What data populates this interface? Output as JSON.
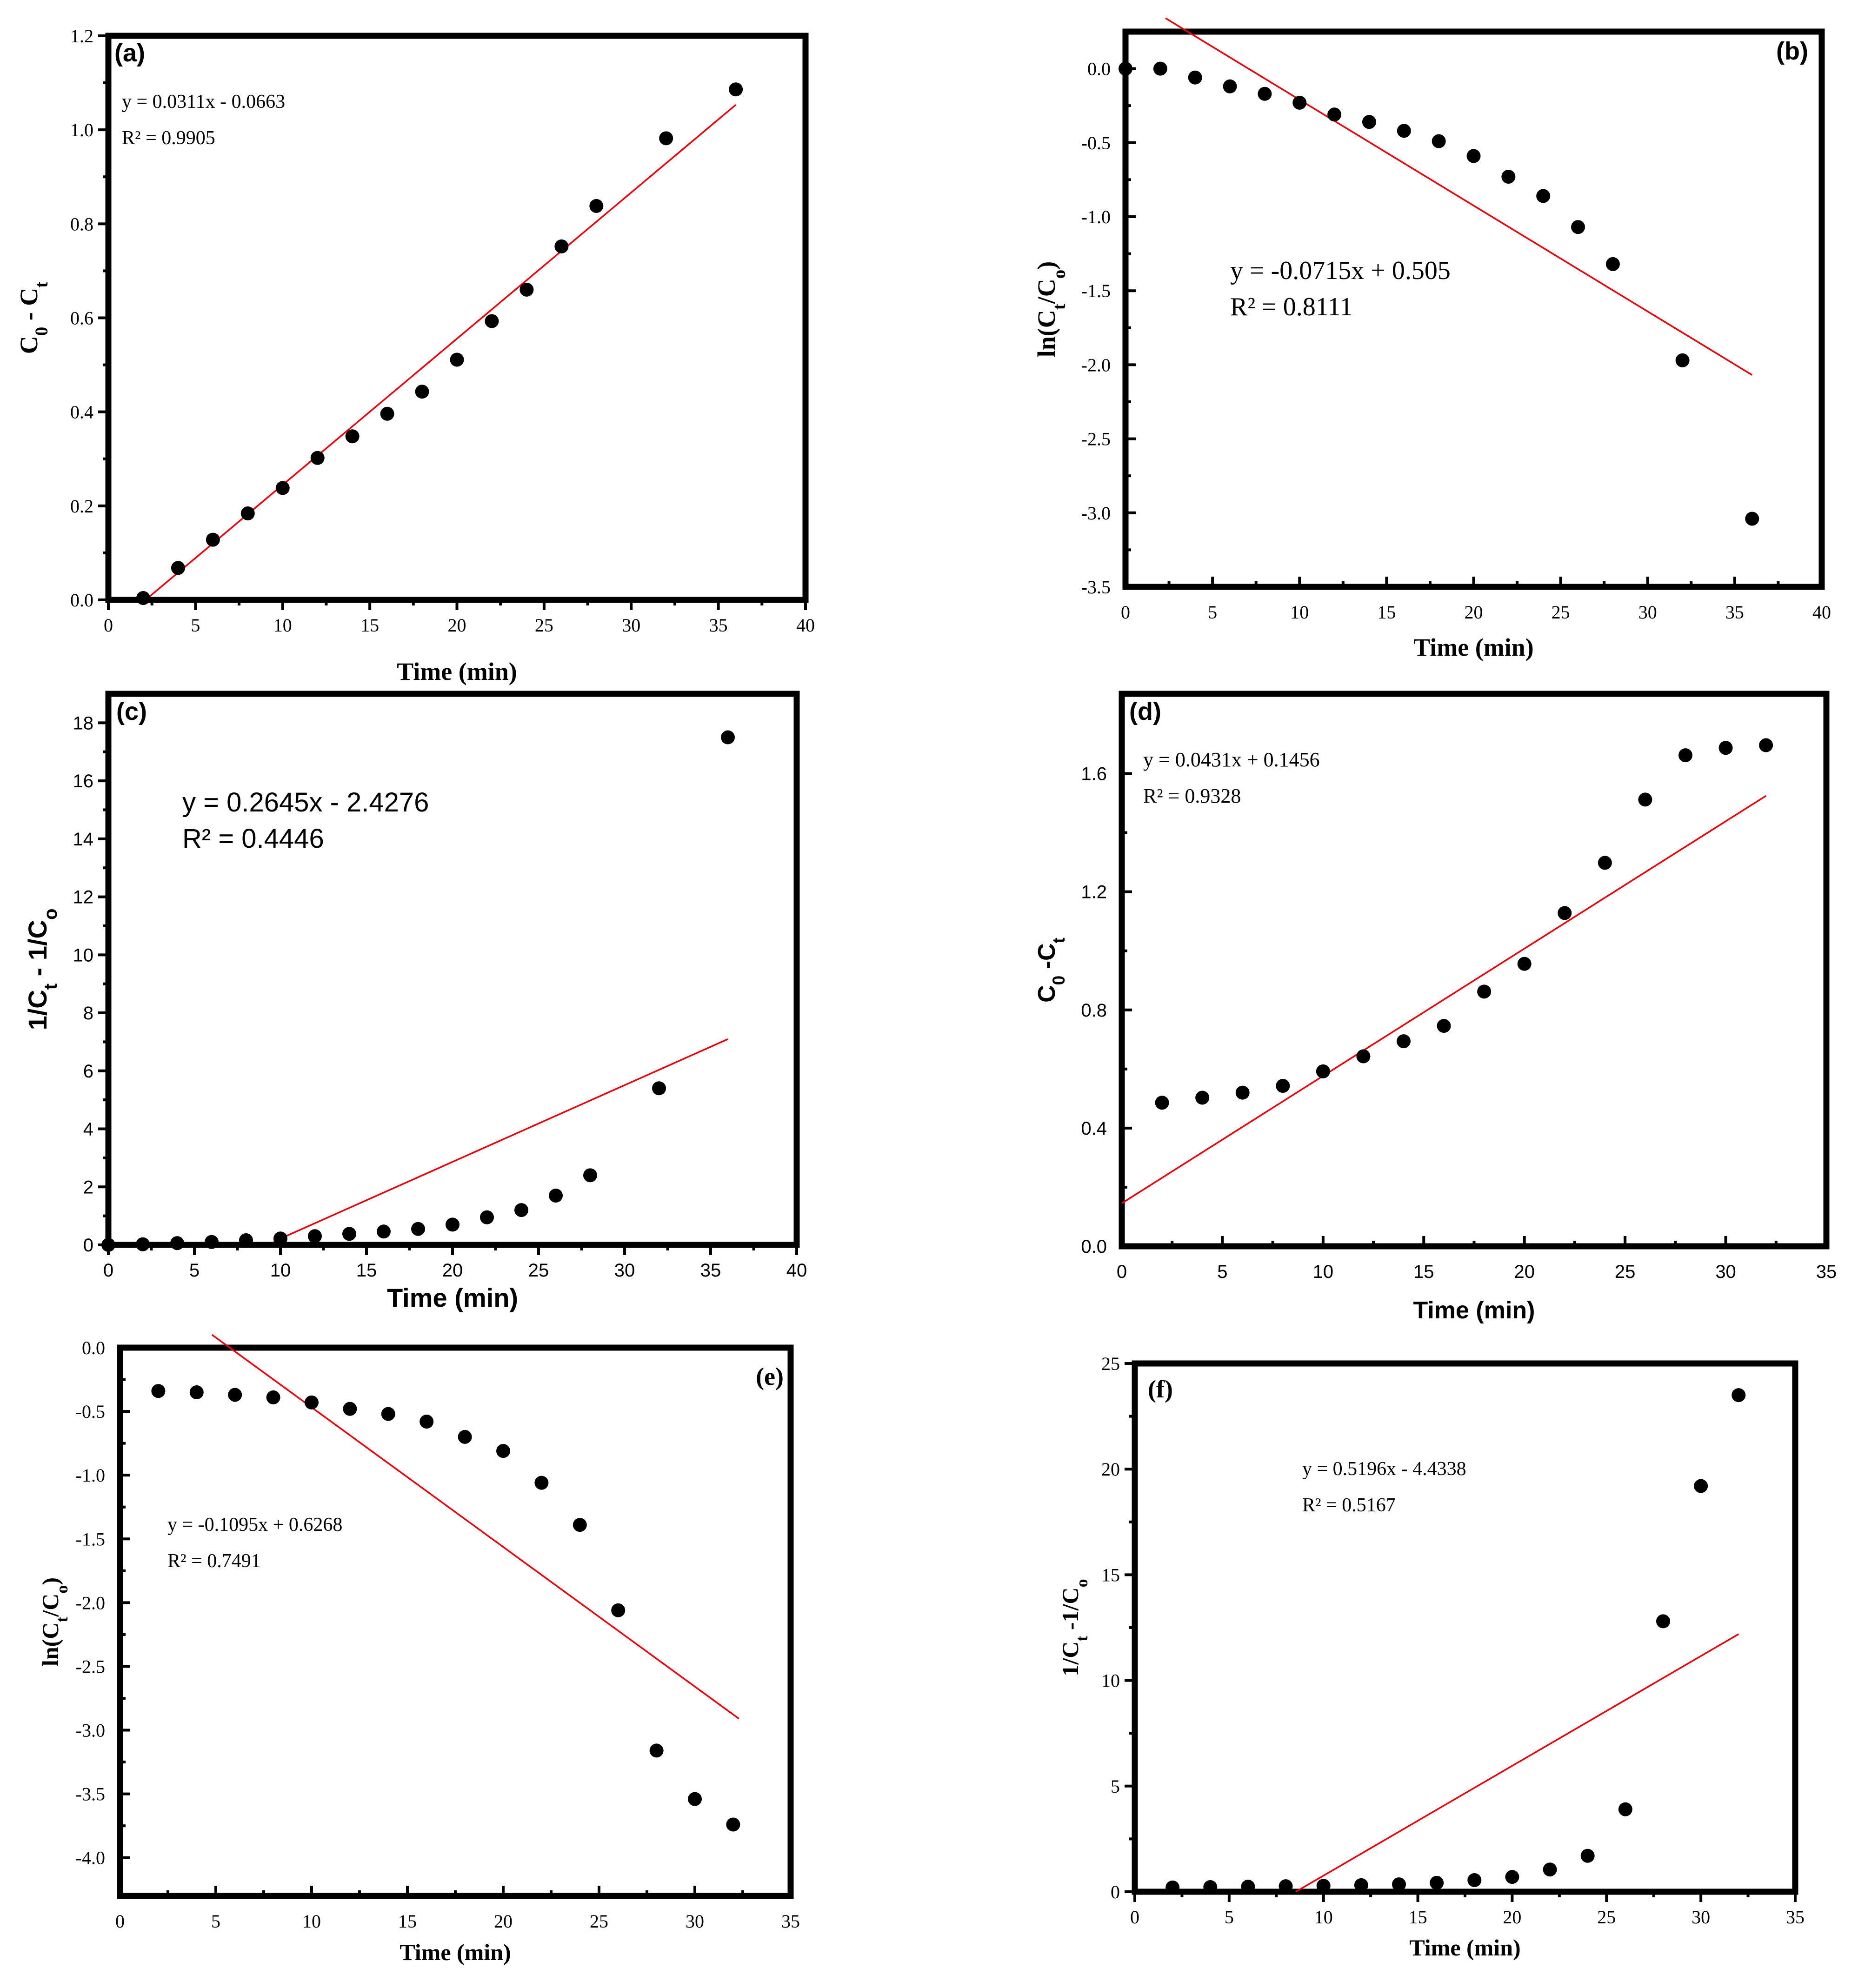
{
  "colors": {
    "points": "#000000",
    "fit_line": "#e8000b",
    "frame": "#000000",
    "background": "#ffffff"
  },
  "chart_data": [
    {
      "panel": "(a)",
      "type": "scatter",
      "xlabel": "Time (min)",
      "ylabel": "C0 - Ct",
      "ylabel_parts": [
        "C",
        "0",
        " - C",
        "t"
      ],
      "xlim": [
        0,
        40
      ],
      "ylim": [
        0,
        1.2
      ],
      "xticks": [
        0,
        5,
        10,
        15,
        20,
        25,
        30,
        35,
        40
      ],
      "yticks": [
        0.0,
        0.2,
        0.4,
        0.6,
        0.8,
        1.0,
        1.2
      ],
      "ytick_labels": [
        "0.0",
        "0.2",
        "0.4",
        "0.6",
        "0.8",
        "1.0",
        "1.2"
      ],
      "x": [
        2,
        4,
        6,
        8,
        10,
        12,
        14,
        16,
        18,
        20,
        22,
        24,
        26,
        28,
        32,
        36
      ],
      "y": [
        0.004,
        0.068,
        0.128,
        0.184,
        0.238,
        0.302,
        0.348,
        0.396,
        0.443,
        0.511,
        0.593,
        0.66,
        0.752,
        0.838,
        0.982,
        1.086
      ],
      "fit": {
        "x0": 2.13,
        "x1": 36
      },
      "equation": "y = 0.0311x - 0.0663",
      "r2": "R² = 0.9905"
    },
    {
      "panel": "(b)",
      "type": "scatter",
      "xlabel": "Time (min)",
      "ylabel": "ln(Ct/Co)",
      "ylabel_parts": [
        "ln(C",
        "t",
        "/C",
        "o",
        ")"
      ],
      "xlim": [
        0,
        40
      ],
      "ylim": [
        -3.5,
        0.25
      ],
      "xticks": [
        0,
        5,
        10,
        15,
        20,
        25,
        30,
        35,
        40
      ],
      "yticks": [
        -3.5,
        -3.0,
        -2.5,
        -2.0,
        -1.5,
        -1.0,
        -0.5,
        0.0
      ],
      "ytick_labels": [
        "-3.5",
        "-3.0",
        "-2.5",
        "-2.0",
        "-1.5",
        "-1.0",
        "-0.5",
        "0.0"
      ],
      "x": [
        0,
        2,
        4,
        6,
        8,
        10,
        12,
        14,
        16,
        18,
        20,
        22,
        24,
        26,
        28,
        32,
        36
      ],
      "y": [
        0,
        0,
        -0.06,
        -0.12,
        -0.17,
        -0.23,
        -0.31,
        -0.36,
        -0.42,
        -0.49,
        -0.59,
        -0.73,
        -0.86,
        -1.07,
        -1.32,
        -1.97,
        -3.04
      ],
      "fit": {
        "x0": 2.3,
        "x1": 36
      },
      "equation": "y = -0.0715x + 0.505",
      "r2": "R² = 0.8111"
    },
    {
      "panel": "(c)",
      "type": "scatter",
      "xlabel": "Time (min)",
      "ylabel": "1/Ct - 1/Co",
      "ylabel_parts": [
        "1/C",
        "t",
        " - 1/C",
        "o"
      ],
      "xlim": [
        0,
        40
      ],
      "ylim": [
        0,
        19
      ],
      "xticks": [
        0,
        5,
        10,
        15,
        20,
        25,
        30,
        35,
        40
      ],
      "yticks": [
        0,
        2,
        4,
        6,
        8,
        10,
        12,
        14,
        16,
        18
      ],
      "ytick_labels": [
        "0",
        "2",
        "4",
        "6",
        "8",
        "10",
        "12",
        "14",
        "16",
        "18"
      ],
      "x": [
        0,
        2,
        4,
        6,
        8,
        10,
        12,
        14,
        16,
        18,
        20,
        22,
        24,
        26,
        28,
        32,
        36
      ],
      "y": [
        0,
        0.02,
        0.06,
        0.1,
        0.16,
        0.22,
        0.3,
        0.38,
        0.46,
        0.55,
        0.7,
        0.95,
        1.2,
        1.7,
        2.4,
        5.4,
        17.5
      ],
      "fit": {
        "x0": 9.6,
        "x1": 36
      },
      "equation": "y = 0.2645x - 2.4276",
      "r2": "R² = 0.4446"
    },
    {
      "panel": "(d)",
      "type": "scatter",
      "xlabel": "Time (min)",
      "ylabel": "C0 -Ct",
      "ylabel_parts": [
        "C",
        "0",
        " -C",
        "t"
      ],
      "xlim": [
        0,
        35
      ],
      "ylim": [
        0,
        1.87
      ],
      "xticks": [
        0,
        5,
        10,
        15,
        20,
        25,
        30,
        35
      ],
      "yticks": [
        0.0,
        0.4,
        0.8,
        1.2,
        1.6
      ],
      "ytick_labels": [
        "0.0",
        "0.4",
        "0.8",
        "1.2",
        "1.6"
      ],
      "x": [
        2,
        4,
        6,
        8,
        10,
        12,
        14,
        16,
        18,
        20,
        22,
        24,
        26,
        28,
        30,
        32
      ],
      "y": [
        0.486,
        0.503,
        0.52,
        0.543,
        0.592,
        0.643,
        0.694,
        0.746,
        0.862,
        0.956,
        1.128,
        1.298,
        1.512,
        1.662,
        1.687,
        1.696
      ],
      "fit": {
        "x0": 0,
        "x1": 32
      },
      "equation": "y = 0.0431x + 0.1456",
      "r2": "R² = 0.9328"
    },
    {
      "panel": "(e)",
      "type": "scatter",
      "xlabel": "Time (min)",
      "ylabel": "ln(Ct/Co)",
      "ylabel_parts": [
        "ln(C",
        "t",
        "/C",
        "o",
        ")"
      ],
      "xlim": [
        0,
        35
      ],
      "ylim": [
        -4.3,
        0
      ],
      "xticks": [
        0,
        5,
        10,
        15,
        20,
        25,
        30,
        35
      ],
      "yticks": [
        -4.0,
        -3.5,
        -3.0,
        -2.5,
        -2.0,
        -1.5,
        -1.0,
        -0.5,
        0.0
      ],
      "ytick_labels": [
        "-4.0",
        "-3.5",
        "-3.0",
        "-2.5",
        "-2.0",
        "-1.5",
        "-1.0",
        "-0.5",
        "0.0"
      ],
      "x": [
        2,
        4,
        6,
        8,
        10,
        12,
        14,
        16,
        18,
        20,
        22,
        24,
        26,
        28,
        30,
        32
      ],
      "y": [
        -0.34,
        -0.35,
        -0.37,
        -0.39,
        -0.43,
        -0.48,
        -0.52,
        -0.58,
        -0.7,
        -0.81,
        -1.06,
        -1.39,
        -2.06,
        -3.16,
        -3.54,
        -3.74
      ],
      "fit": {
        "x0": 4.8,
        "x1": 32.3
      },
      "equation": "y = -0.1095x + 0.6268",
      "r2": "R² = 0.7491"
    },
    {
      "panel": "(f)",
      "type": "scatter",
      "xlabel": "Time (min)",
      "ylabel": "1/Ct -1/Co",
      "ylabel_parts": [
        "1/C",
        "t",
        " -1/C",
        "o"
      ],
      "xlim": [
        0,
        35
      ],
      "ylim": [
        0,
        25
      ],
      "xticks": [
        0,
        5,
        10,
        15,
        20,
        25,
        30,
        35
      ],
      "yticks": [
        0,
        5,
        10,
        15,
        20,
        25
      ],
      "ytick_labels": [
        "0",
        "5",
        "10",
        "15",
        "20",
        "25"
      ],
      "x": [
        2,
        4,
        6,
        8,
        10,
        12,
        14,
        16,
        18,
        20,
        22,
        24,
        26,
        28,
        30,
        32
      ],
      "y": [
        0.2,
        0.22,
        0.24,
        0.26,
        0.28,
        0.31,
        0.35,
        0.42,
        0.55,
        0.7,
        1.05,
        1.7,
        3.9,
        12.8,
        19.2,
        23.5
      ],
      "fit": {
        "x0": 8.53,
        "x1": 32
      },
      "equation": "y = 0.5196x - 4.4338",
      "r2": "R² = 0.5167"
    }
  ]
}
